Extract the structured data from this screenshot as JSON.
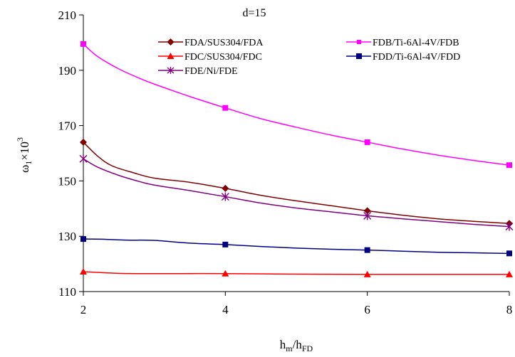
{
  "chart_data": {
    "type": "line",
    "title": "d=15",
    "xlabel_main": "h",
    "xlabel_sub1": "m",
    "xlabel_mid": "/h",
    "xlabel_sub2": "FD",
    "ylabel_main": "ω",
    "ylabel_sub": "1",
    "ylabel_mid": "×10",
    "ylabel_sup": "3",
    "xlim": [
      2,
      8
    ],
    "ylim": [
      110,
      210
    ],
    "xticks": [
      2,
      4,
      6,
      8
    ],
    "yticks": [
      110,
      130,
      150,
      170,
      190,
      210
    ],
    "grid": false,
    "legend_position": "top-right",
    "series": [
      {
        "name": "FDA/SUS304/FDA",
        "color": "#800000",
        "marker": "diamond",
        "x": [
          2,
          4,
          6,
          8
        ],
        "values": [
          164,
          147.3,
          139.2,
          134.6
        ],
        "curve": [
          [
            2,
            164
          ],
          [
            2.2,
            159
          ],
          [
            2.4,
            155.5
          ],
          [
            2.7,
            153
          ],
          [
            3,
            151
          ],
          [
            3.5,
            149.5
          ],
          [
            4,
            147.3
          ],
          [
            4.5,
            144.8
          ],
          [
            5,
            142.8
          ],
          [
            5.5,
            141
          ],
          [
            6,
            139.2
          ],
          [
            6.5,
            137.6
          ],
          [
            7,
            136.3
          ],
          [
            7.5,
            135.4
          ],
          [
            8,
            134.6
          ]
        ]
      },
      {
        "name": "FDB/Ti-6Al-4V/FDB",
        "color": "#ff00ff",
        "marker": "square",
        "x": [
          2,
          4,
          6,
          8
        ],
        "values": [
          199.5,
          176.4,
          164,
          155.7
        ],
        "curve": [
          [
            2,
            199.5
          ],
          [
            2.2,
            195
          ],
          [
            2.5,
            190.5
          ],
          [
            2.8,
            187
          ],
          [
            3,
            185
          ],
          [
            3.5,
            180.5
          ],
          [
            4,
            176.4
          ],
          [
            4.5,
            172.5
          ],
          [
            5,
            169.4
          ],
          [
            5.5,
            166.5
          ],
          [
            6,
            164
          ],
          [
            6.5,
            161.5
          ],
          [
            7,
            159.3
          ],
          [
            7.5,
            157.4
          ],
          [
            8,
            155.7
          ]
        ]
      },
      {
        "name": "FDC/SUS304/FDC",
        "color": "#ff0000",
        "marker": "triangle",
        "x": [
          2,
          4,
          6,
          8
        ],
        "values": [
          117.2,
          116.5,
          116.2,
          116.2
        ],
        "curve": [
          [
            2,
            117.2
          ],
          [
            2.5,
            116.6
          ],
          [
            3,
            116.5
          ],
          [
            4,
            116.5
          ],
          [
            5,
            116.3
          ],
          [
            6,
            116.2
          ],
          [
            7,
            116.2
          ],
          [
            8,
            116.2
          ]
        ]
      },
      {
        "name": "FDD/Ti-6Al-4V/FDD",
        "color": "#000080",
        "marker": "square",
        "x": [
          2,
          4,
          6,
          8
        ],
        "values": [
          129,
          127,
          125,
          123.8
        ],
        "curve": [
          [
            2,
            129
          ],
          [
            2.3,
            128.9
          ],
          [
            2.6,
            128.6
          ],
          [
            3,
            128.5
          ],
          [
            3.5,
            127.5
          ],
          [
            4,
            127
          ],
          [
            4.5,
            126.3
          ],
          [
            5,
            125.7
          ],
          [
            5.5,
            125.3
          ],
          [
            6,
            125
          ],
          [
            6.5,
            124.6
          ],
          [
            7,
            124.2
          ],
          [
            7.5,
            124
          ],
          [
            8,
            123.8
          ]
        ]
      },
      {
        "name": "FDE/Ni/FDE",
        "color": "#800080",
        "marker": "asterisk",
        "x": [
          2,
          4,
          6,
          8
        ],
        "values": [
          158,
          144.3,
          137.4,
          133.5
        ],
        "curve": [
          [
            2,
            158
          ],
          [
            2.2,
            155
          ],
          [
            2.5,
            152
          ],
          [
            2.8,
            149.7
          ],
          [
            3,
            148.5
          ],
          [
            3.5,
            146.5
          ],
          [
            4,
            144.3
          ],
          [
            4.5,
            142
          ],
          [
            5,
            140.2
          ],
          [
            5.5,
            138.8
          ],
          [
            6,
            137.4
          ],
          [
            6.5,
            136.3
          ],
          [
            7,
            135.3
          ],
          [
            7.5,
            134.3
          ],
          [
            8,
            133.5
          ]
        ]
      }
    ]
  }
}
